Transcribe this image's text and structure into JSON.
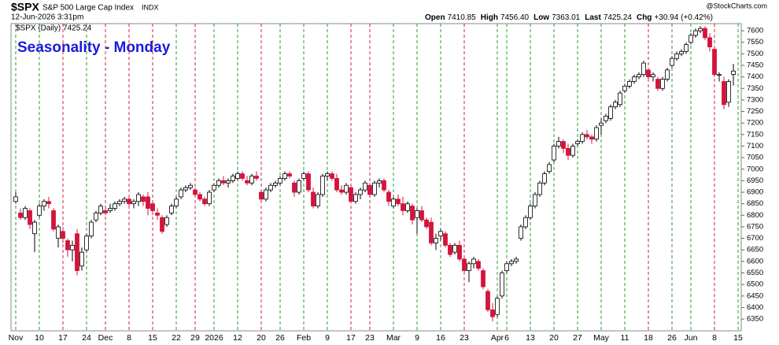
{
  "header": {
    "symbol": "$SPX",
    "name": "S&P 500 Large Cap Index",
    "exchange": "INDX",
    "date": "12-Jun-2026 3:31pm",
    "source": "@StockCharts.com",
    "stats": [
      {
        "label": "Open",
        "value": "7410.85"
      },
      {
        "label": "High",
        "value": "7456.40"
      },
      {
        "label": "Low",
        "value": "7363.01"
      },
      {
        "label": "Last",
        "value": "7425.24"
      },
      {
        "label": "Chg",
        "value": "+30.94 (+0.42%)"
      }
    ]
  },
  "chart_data": {
    "type": "candlestick",
    "title": "Seasonality - Monday",
    "legend": "$SPX (Daily) 7425.24",
    "ylim": [
      6299,
      7631
    ],
    "yticks": [
      6350,
      6400,
      6450,
      6500,
      6550,
      6600,
      6650,
      6700,
      6750,
      6800,
      6850,
      6900,
      6950,
      7000,
      7050,
      7100,
      7150,
      7200,
      7250,
      7300,
      7350,
      7400,
      7450,
      7500,
      7550,
      7600
    ],
    "up_color": "#ffffff",
    "down_color": "#d2143c",
    "monday_up_color": "#2a9d2a",
    "monday_down_color": "#d02040",
    "categories": [
      "Nov",
      null,
      null,
      null,
      null,
      "10",
      null,
      null,
      null,
      null,
      "17",
      null,
      null,
      null,
      null,
      "24",
      null,
      null,
      null,
      "Dec",
      null,
      null,
      null,
      null,
      "8",
      null,
      null,
      null,
      null,
      "15",
      null,
      null,
      null,
      null,
      "22",
      null,
      null,
      null,
      "29",
      null,
      null,
      null,
      "2026",
      null,
      null,
      null,
      null,
      "12",
      null,
      null,
      null,
      null,
      "20",
      null,
      null,
      null,
      "26",
      null,
      null,
      null,
      null,
      "Feb",
      null,
      null,
      null,
      null,
      "9",
      null,
      null,
      null,
      null,
      "17",
      null,
      null,
      null,
      "23",
      null,
      null,
      null,
      null,
      "Mar",
      null,
      null,
      null,
      null,
      "9",
      null,
      null,
      null,
      null,
      "16",
      null,
      null,
      null,
      null,
      "23",
      null,
      null,
      null,
      null,
      null,
      null,
      "Apr",
      null,
      "6",
      null,
      null,
      null,
      null,
      "13",
      null,
      null,
      null,
      null,
      "20",
      null,
      null,
      null,
      null,
      "27",
      null,
      null,
      null,
      null,
      "May",
      null,
      null,
      null,
      null,
      "11",
      null,
      null,
      null,
      null,
      "18",
      null,
      null,
      null,
      null,
      "26",
      null,
      null,
      null,
      "Jun",
      null,
      null,
      null,
      null,
      "8",
      null,
      null,
      null,
      null,
      "15"
    ],
    "candles": [
      [
        6860,
        6900,
        6850,
        6880
      ],
      [
        6810,
        6830,
        6780,
        6790
      ],
      [
        6790,
        6840,
        6780,
        6830
      ],
      [
        6820,
        6830,
        6740,
        6760
      ],
      [
        6720,
        6780,
        6640,
        6770
      ],
      [
        6800,
        6850,
        6790,
        6840
      ],
      [
        6840,
        6870,
        6820,
        6860
      ],
      [
        6860,
        6880,
        6830,
        6850
      ],
      [
        6820,
        6830,
        6730,
        6740
      ],
      [
        6700,
        6760,
        6660,
        6750
      ],
      [
        6730,
        6750,
        6680,
        6700
      ],
      [
        6690,
        6700,
        6620,
        6650
      ],
      [
        6650,
        6690,
        6600,
        6670
      ],
      [
        6720,
        6740,
        6540,
        6560
      ],
      [
        6580,
        6660,
        6560,
        6640
      ],
      [
        6650,
        6720,
        6640,
        6710
      ],
      [
        6710,
        6780,
        6700,
        6770
      ],
      [
        6780,
        6820,
        6770,
        6810
      ],
      [
        6810,
        6850,
        6800,
        6840
      ],
      [
        6820,
        6840,
        6800,
        6810
      ],
      [
        6820,
        6850,
        6810,
        6830
      ],
      [
        6830,
        6860,
        6820,
        6850
      ],
      [
        6850,
        6870,
        6840,
        6860
      ],
      [
        6860,
        6880,
        6850,
        6870
      ],
      [
        6870,
        6880,
        6840,
        6850
      ],
      [
        6850,
        6870,
        6830,
        6860
      ],
      [
        6860,
        6900,
        6840,
        6890
      ],
      [
        6880,
        6890,
        6840,
        6860
      ],
      [
        6880,
        6900,
        6800,
        6830
      ],
      [
        6850,
        6860,
        6800,
        6820
      ],
      [
        6810,
        6830,
        6780,
        6800
      ],
      [
        6790,
        6800,
        6720,
        6730
      ],
      [
        6760,
        6800,
        6750,
        6790
      ],
      [
        6810,
        6850,
        6800,
        6840
      ],
      [
        6840,
        6880,
        6830,
        6870
      ],
      [
        6880,
        6920,
        6870,
        6910
      ],
      [
        6910,
        6930,
        6900,
        6920
      ],
      [
        6920,
        6940,
        6910,
        6930
      ],
      [
        6910,
        6920,
        6880,
        6890
      ],
      [
        6890,
        6900,
        6860,
        6870
      ],
      [
        6870,
        6880,
        6840,
        6850
      ],
      [
        6850,
        6910,
        6840,
        6900
      ],
      [
        6910,
        6940,
        6900,
        6930
      ],
      [
        6930,
        6960,
        6920,
        6950
      ],
      [
        6950,
        6970,
        6930,
        6940
      ],
      [
        6940,
        6960,
        6920,
        6950
      ],
      [
        6950,
        6980,
        6940,
        6970
      ],
      [
        6960,
        6990,
        6950,
        6980
      ],
      [
        6980,
        6990,
        6950,
        6960
      ],
      [
        6950,
        6970,
        6930,
        6940
      ],
      [
        6940,
        6980,
        6930,
        6970
      ],
      [
        6970,
        6990,
        6950,
        6960
      ],
      [
        6900,
        6910,
        6860,
        6870
      ],
      [
        6870,
        6920,
        6860,
        6910
      ],
      [
        6910,
        6940,
        6900,
        6930
      ],
      [
        6930,
        6950,
        6920,
        6940
      ],
      [
        6940,
        6970,
        6930,
        6960
      ],
      [
        6960,
        6990,
        6950,
        6980
      ],
      [
        6980,
        6990,
        6960,
        6970
      ],
      [
        6940,
        6950,
        6880,
        6900
      ],
      [
        6900,
        6960,
        6890,
        6950
      ],
      [
        6960,
        6990,
        6950,
        6980
      ],
      [
        6980,
        6990,
        6900,
        6910
      ],
      [
        6900,
        6920,
        6830,
        6840
      ],
      [
        6840,
        6900,
        6830,
        6890
      ],
      [
        6890,
        6980,
        6880,
        6970
      ],
      [
        6970,
        6990,
        6950,
        6980
      ],
      [
        6980,
        6990,
        6950,
        6960
      ],
      [
        6960,
        6980,
        6900,
        6910
      ],
      [
        6910,
        6930,
        6890,
        6900
      ],
      [
        6900,
        6940,
        6890,
        6930
      ],
      [
        6920,
        6930,
        6850,
        6860
      ],
      [
        6860,
        6900,
        6850,
        6890
      ],
      [
        6890,
        6920,
        6870,
        6910
      ],
      [
        6910,
        6950,
        6900,
        6940
      ],
      [
        6930,
        6940,
        6880,
        6890
      ],
      [
        6890,
        6950,
        6880,
        6940
      ],
      [
        6940,
        6960,
        6920,
        6950
      ],
      [
        6950,
        6960,
        6900,
        6910
      ],
      [
        6900,
        6910,
        6840,
        6860
      ],
      [
        6840,
        6880,
        6830,
        6870
      ],
      [
        6870,
        6890,
        6840,
        6850
      ],
      [
        6850,
        6880,
        6800,
        6820
      ],
      [
        6820,
        6860,
        6810,
        6850
      ],
      [
        6840,
        6850,
        6760,
        6780
      ],
      [
        6790,
        6830,
        6720,
        6820
      ],
      [
        6820,
        6840,
        6770,
        6780
      ],
      [
        6780,
        6790,
        6740,
        6750
      ],
      [
        6770,
        6790,
        6670,
        6680
      ],
      [
        6680,
        6720,
        6650,
        6700
      ],
      [
        6710,
        6740,
        6690,
        6730
      ],
      [
        6720,
        6730,
        6660,
        6670
      ],
      [
        6670,
        6680,
        6620,
        6630
      ],
      [
        6640,
        6680,
        6630,
        6670
      ],
      [
        6670,
        6690,
        6600,
        6610
      ],
      [
        6610,
        6620,
        6550,
        6560
      ],
      [
        6560,
        6600,
        6510,
        6590
      ],
      [
        6590,
        6620,
        6570,
        6610
      ],
      [
        6600,
        6610,
        6560,
        6570
      ],
      [
        6560,
        6570,
        6480,
        6490
      ],
      [
        6470,
        6480,
        6380,
        6390
      ],
      [
        6390,
        6420,
        6340,
        6360
      ],
      [
        6370,
        6450,
        6360,
        6440
      ],
      [
        6450,
        6560,
        6440,
        6550
      ],
      [
        6560,
        6600,
        6550,
        6590
      ],
      [
        6590,
        6610,
        6580,
        6600
      ],
      [
        6600,
        6620,
        6590,
        6610
      ],
      [
        6700,
        6760,
        6690,
        6750
      ],
      [
        6750,
        6800,
        6740,
        6790
      ],
      [
        6790,
        6850,
        6780,
        6840
      ],
      [
        6840,
        6900,
        6830,
        6890
      ],
      [
        6890,
        6950,
        6880,
        6940
      ],
      [
        6940,
        6990,
        6930,
        6980
      ],
      [
        6990,
        7030,
        6980,
        7020
      ],
      [
        7040,
        7110,
        7030,
        7100
      ],
      [
        7100,
        7140,
        7090,
        7120
      ],
      [
        7120,
        7130,
        7070,
        7090
      ],
      [
        7090,
        7110,
        7040,
        7060
      ],
      [
        7060,
        7110,
        7050,
        7100
      ],
      [
        7110,
        7130,
        7100,
        7120
      ],
      [
        7120,
        7160,
        7110,
        7150
      ],
      [
        7150,
        7170,
        7130,
        7140
      ],
      [
        7140,
        7150,
        7110,
        7130
      ],
      [
        7130,
        7190,
        7120,
        7180
      ],
      [
        7190,
        7220,
        7150,
        7200
      ],
      [
        7210,
        7240,
        7200,
        7230
      ],
      [
        7220,
        7280,
        7210,
        7270
      ],
      [
        7270,
        7300,
        7260,
        7290
      ],
      [
        7280,
        7340,
        7270,
        7330
      ],
      [
        7340,
        7370,
        7330,
        7360
      ],
      [
        7360,
        7390,
        7350,
        7380
      ],
      [
        7380,
        7410,
        7370,
        7400
      ],
      [
        7400,
        7420,
        7390,
        7410
      ],
      [
        7410,
        7470,
        7400,
        7460
      ],
      [
        7430,
        7440,
        7390,
        7400
      ],
      [
        7400,
        7420,
        7380,
        7410
      ],
      [
        7390,
        7400,
        7340,
        7350
      ],
      [
        7350,
        7400,
        7340,
        7390
      ],
      [
        7390,
        7440,
        7380,
        7430
      ],
      [
        7450,
        7490,
        7440,
        7480
      ],
      [
        7480,
        7510,
        7470,
        7500
      ],
      [
        7500,
        7520,
        7490,
        7510
      ],
      [
        7510,
        7550,
        7500,
        7540
      ],
      [
        7550,
        7590,
        7540,
        7580
      ],
      [
        7580,
        7610,
        7570,
        7600
      ],
      [
        7600,
        7620,
        7590,
        7610
      ],
      [
        7610,
        7620,
        7560,
        7570
      ],
      [
        7570,
        7590,
        7510,
        7530
      ],
      [
        7520,
        7530,
        7400,
        7410
      ],
      [
        7410,
        7420,
        7380,
        7410
      ],
      [
        7380,
        7400,
        7260,
        7280
      ],
      [
        7290,
        7390,
        7270,
        7380
      ],
      [
        7410.85,
        7456.4,
        7363.01,
        7425.24
      ],
      null
    ]
  }
}
